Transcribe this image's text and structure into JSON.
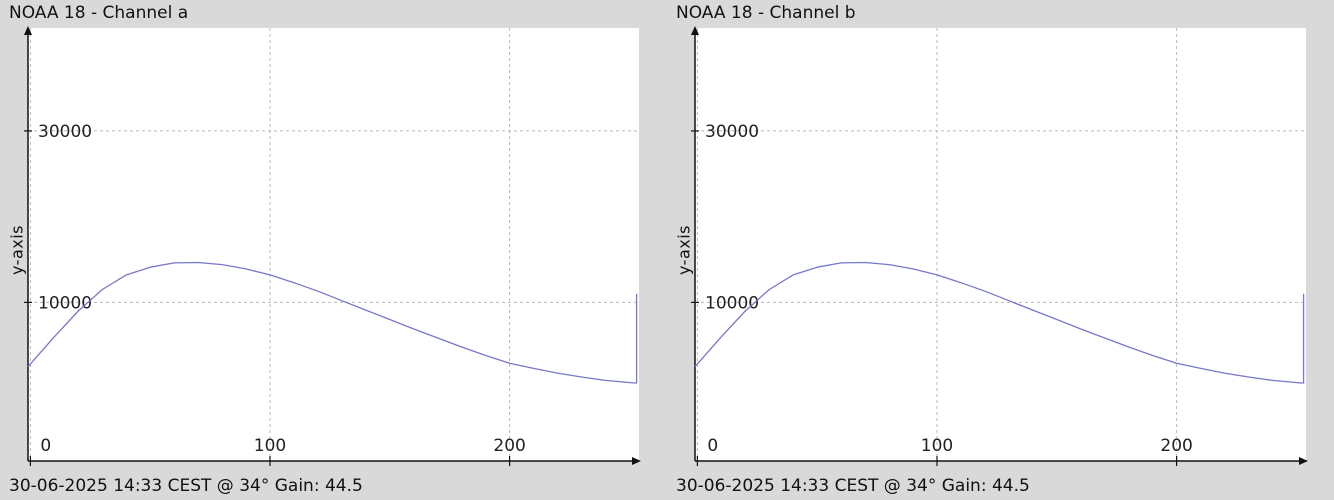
{
  "chart_data": [
    {
      "type": "line",
      "title": "NOAA 18 - Channel a",
      "ylabel": "y-axis",
      "xlabel": "",
      "footer": "30-06-2025 14:33 CEST @ 34° Gain: 44.5",
      "xlim": [
        -1,
        254
      ],
      "ylim": [
        -8500,
        42000
      ],
      "xticks": [
        0,
        100,
        200
      ],
      "yticks": [
        10000,
        30000
      ],
      "grid": true,
      "color": "#7777cc",
      "series": [
        {
          "x": [
            -1,
            10,
            20,
            30,
            40,
            50,
            60,
            70,
            80,
            90,
            100,
            110,
            120,
            130,
            140,
            150,
            160,
            170,
            180,
            190,
            200,
            210,
            220,
            230,
            240,
            252,
            253,
            253
          ],
          "y": [
            2500,
            6000,
            9000,
            11500,
            13200,
            14100,
            14600,
            14650,
            14400,
            13900,
            13200,
            12300,
            11300,
            10200,
            9100,
            8000,
            6900,
            5850,
            4800,
            3800,
            2900,
            2300,
            1750,
            1300,
            900,
            600,
            600,
            11000
          ]
        }
      ]
    },
    {
      "type": "line",
      "title": "NOAA 18 - Channel b",
      "ylabel": "y-axis",
      "xlabel": "",
      "footer": "30-06-2025 14:33 CEST @ 34° Gain: 44.5",
      "xlim": [
        -1,
        254
      ],
      "ylim": [
        -8500,
        42000
      ],
      "xticks": [
        0,
        100,
        200
      ],
      "yticks": [
        10000,
        30000
      ],
      "grid": true,
      "color": "#7777cc",
      "series": [
        {
          "x": [
            -1,
            10,
            20,
            30,
            40,
            50,
            60,
            70,
            80,
            90,
            100,
            110,
            120,
            130,
            140,
            150,
            160,
            170,
            180,
            190,
            200,
            210,
            220,
            230,
            240,
            252,
            253,
            253
          ],
          "y": [
            2500,
            6000,
            9000,
            11500,
            13200,
            14100,
            14600,
            14650,
            14400,
            13900,
            13200,
            12300,
            11300,
            10200,
            9100,
            8000,
            6900,
            5850,
            4800,
            3800,
            2900,
            2300,
            1750,
            1300,
            900,
            600,
            600,
            11000
          ]
        }
      ]
    }
  ]
}
